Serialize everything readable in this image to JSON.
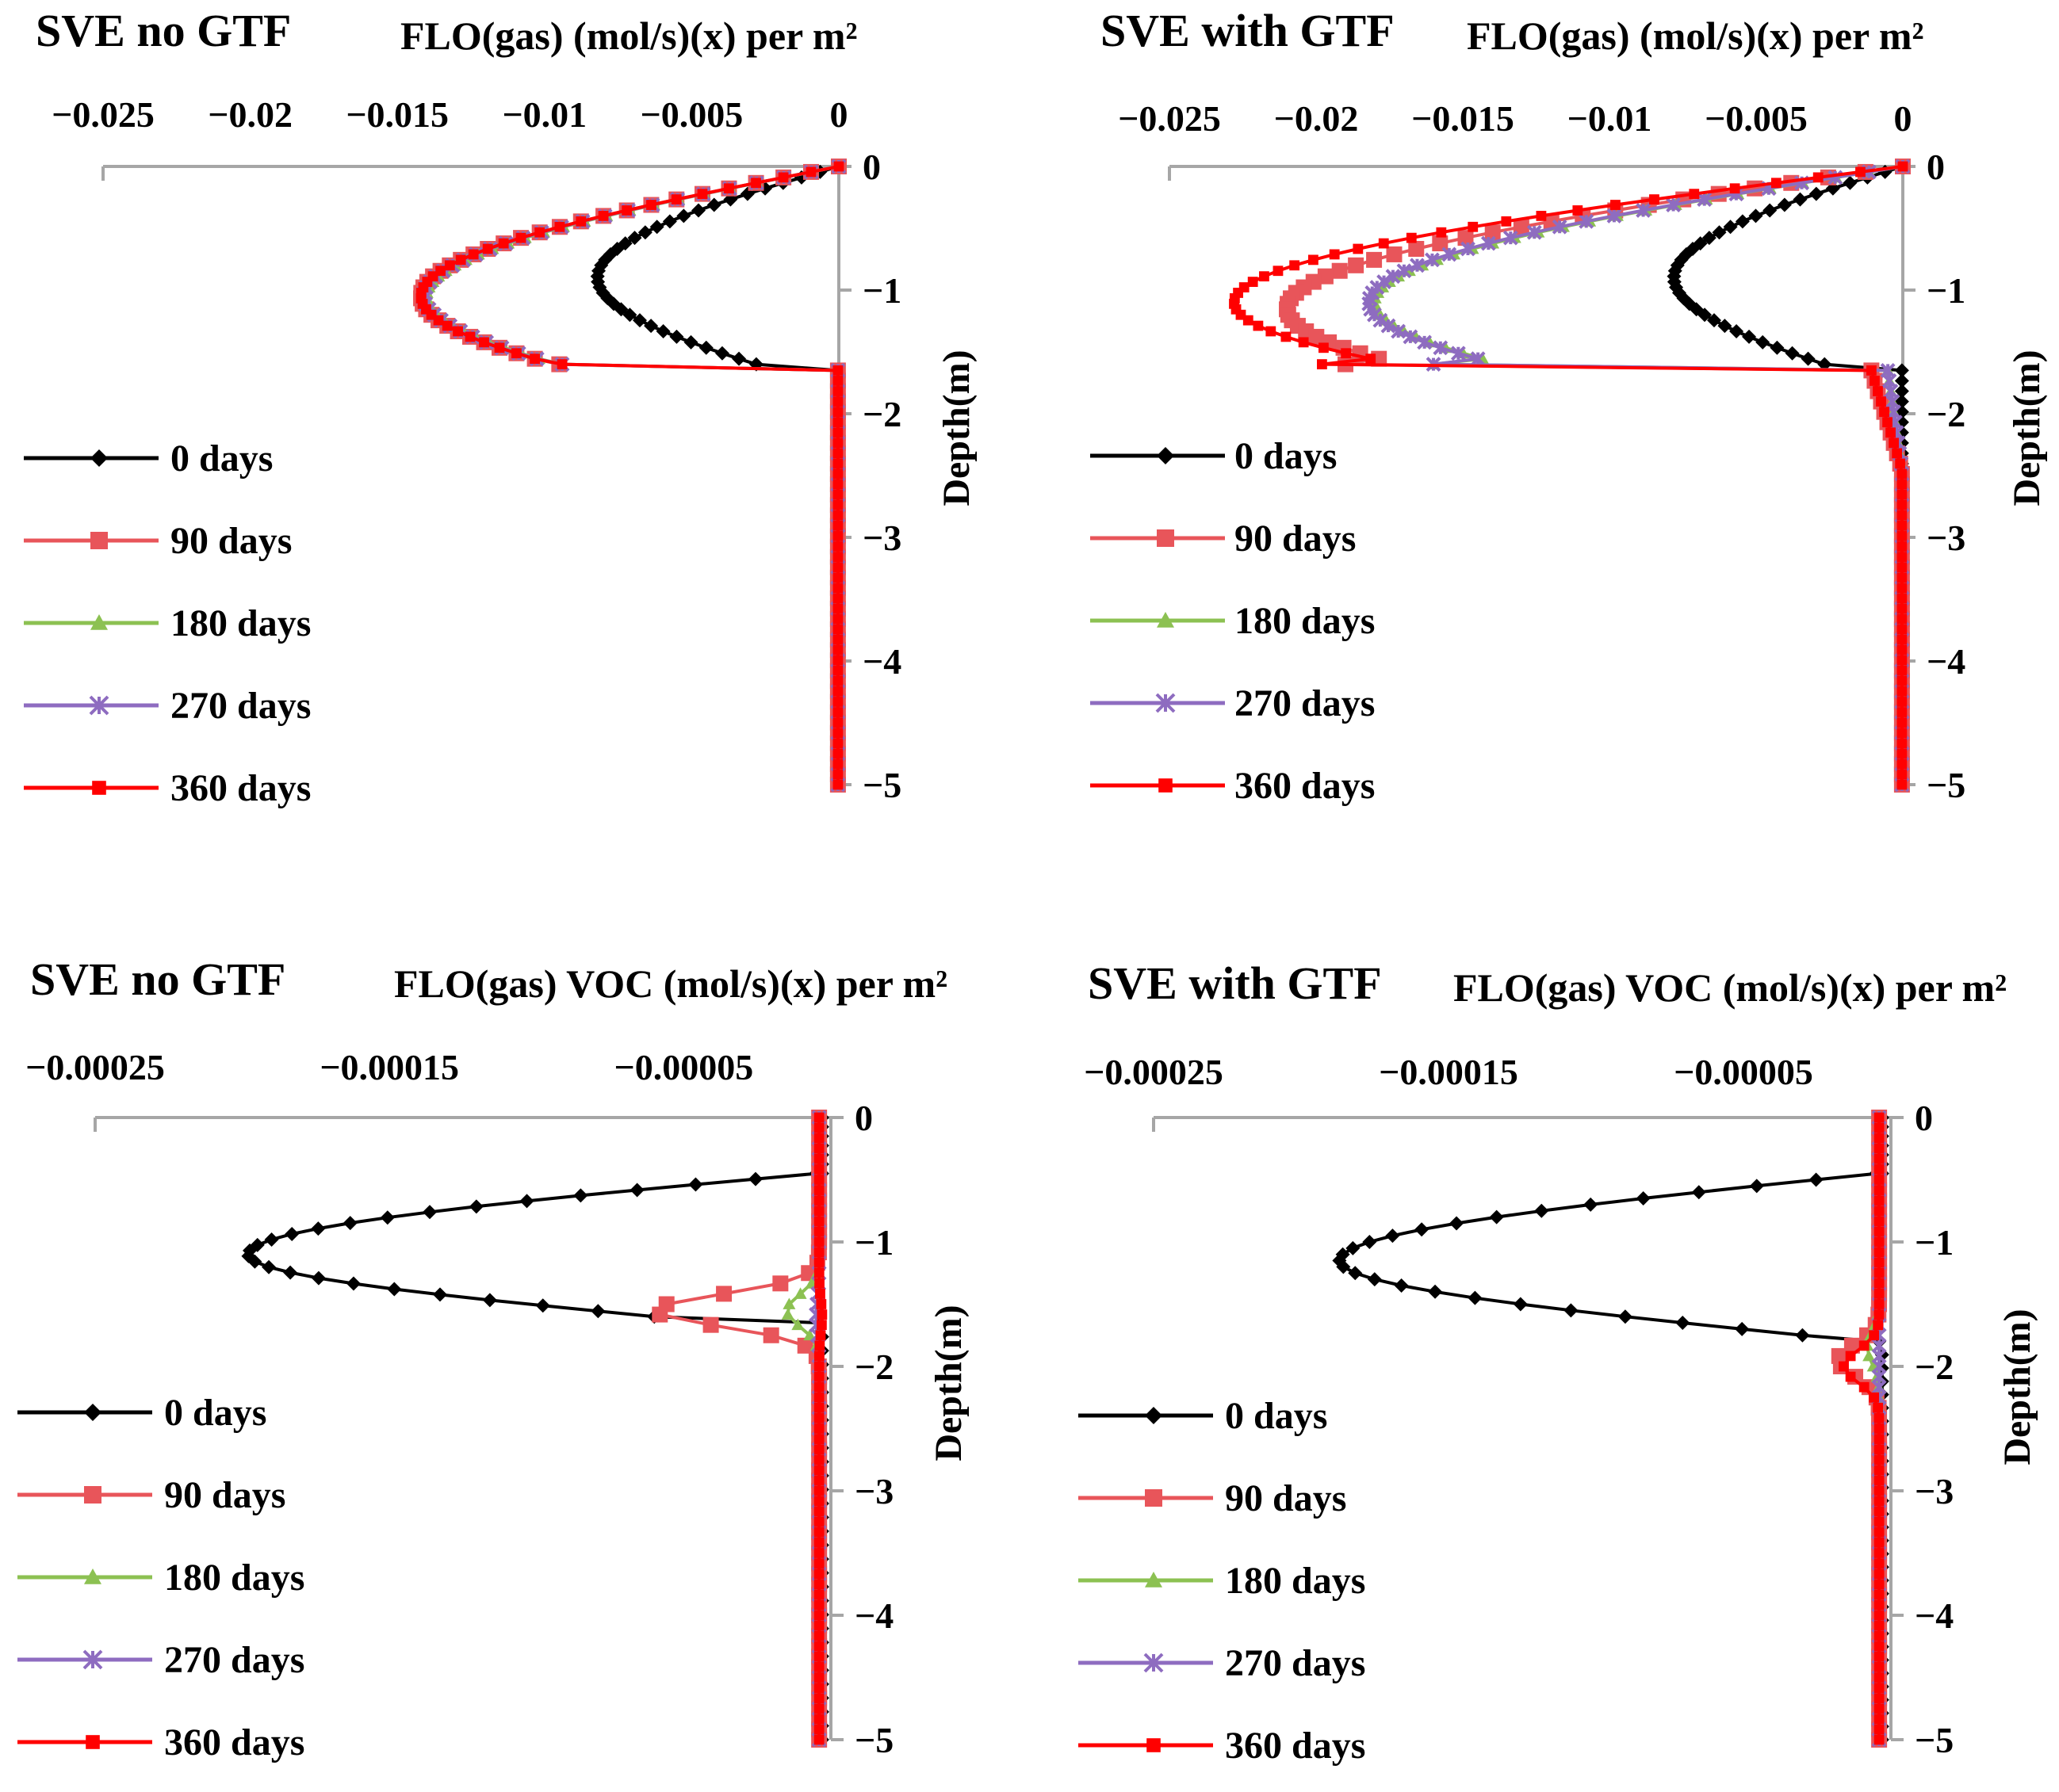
{
  "series_styles": [
    {
      "name": "0 days",
      "color": "#000000",
      "marker": "diamond"
    },
    {
      "name": "90 days",
      "color": "#e8555a",
      "marker": "square"
    },
    {
      "name": "180 days",
      "color": "#8cc152",
      "marker": "triangle"
    },
    {
      "name": "270 days",
      "color": "#8e6cc0",
      "marker": "star"
    },
    {
      "name": "360 days",
      "color": "#ff0000",
      "marker": "square-small"
    }
  ],
  "chart_data": [
    {
      "type": "line",
      "title": "SVE no GTF",
      "xlabel": "FLO(gas) (mol/s)(x) per m²",
      "ylabel": "Depth(m)",
      "xlim": [
        -0.025,
        0
      ],
      "ylim": [
        -5,
        0
      ],
      "xticks": [
        -0.025,
        -0.02,
        -0.015,
        -0.01,
        -0.005,
        0
      ],
      "xtick_labels": [
        "−0.025",
        "−0.02",
        "−0.015",
        "−0.01",
        "−0.005",
        "0"
      ],
      "yticks": [
        0,
        -1,
        -2,
        -3,
        -4,
        -5
      ],
      "ytick_labels": [
        "0",
        "−1",
        "−2",
        "−3",
        "−4",
        "−5"
      ],
      "legend": "left",
      "series": [
        {
          "name": "0 days",
          "peak": -0.0082,
          "peak_depth": -0.9,
          "cutoff_depth": -1.6
        },
        {
          "name": "90 days",
          "peak": -0.0142,
          "peak_depth": -1.05,
          "cutoff_depth": -1.6,
          "cutoff_value": -0.0095
        },
        {
          "name": "180 days",
          "peak": -0.014,
          "peak_depth": -1.05,
          "cutoff_depth": -1.6,
          "cutoff_value": -0.0094
        },
        {
          "name": "270 days",
          "peak": -0.0141,
          "peak_depth": -1.05,
          "cutoff_depth": -1.6,
          "cutoff_value": -0.0094
        },
        {
          "name": "360 days",
          "peak": -0.0142,
          "peak_depth": -1.05,
          "cutoff_depth": -1.6,
          "cutoff_value": -0.0094
        }
      ]
    },
    {
      "type": "line",
      "title": "SVE with GTF",
      "xlabel": "FLO(gas) (mol/s)(x) per m²",
      "ylabel": "Depth(m)",
      "xlim": [
        -0.025,
        0
      ],
      "ylim": [
        -5,
        0
      ],
      "xticks": [
        -0.025,
        -0.02,
        -0.015,
        -0.01,
        -0.005,
        0
      ],
      "xtick_labels": [
        "−0.025",
        "−0.02",
        "−0.015",
        "−0.01",
        "−0.005",
        "0"
      ],
      "yticks": [
        0,
        -1,
        -2,
        -3,
        -4,
        -5
      ],
      "ytick_labels": [
        "0",
        "−1",
        "−2",
        "−3",
        "−4",
        "−5"
      ],
      "legend": "left",
      "series": [
        {
          "name": "0 days",
          "peak": -0.0078,
          "peak_depth": -0.9,
          "cutoff_depth": -1.6
        },
        {
          "name": "90 days",
          "peak": -0.021,
          "peak_depth": -1.15,
          "cutoff_depth": -1.6,
          "cutoff_value": -0.019
        },
        {
          "name": "180 days",
          "peak": -0.018,
          "peak_depth": -1.1,
          "cutoff_depth": -1.6,
          "cutoff_value": -0.016
        },
        {
          "name": "270 days",
          "peak": -0.0182,
          "peak_depth": -1.1,
          "cutoff_depth": -1.6,
          "cutoff_value": -0.016
        },
        {
          "name": "360 days",
          "peak": -0.0228,
          "peak_depth": -1.1,
          "cutoff_depth": -1.6,
          "cutoff_value": -0.0198
        }
      ]
    },
    {
      "type": "line",
      "title": "SVE no GTF",
      "xlabel": "FLO(gas) VOC (mol/s)(x) per m²",
      "ylabel": "Depth(m)",
      "xlim": [
        -0.00025,
        0
      ],
      "ylim": [
        -5,
        0
      ],
      "xticks": [
        -0.00025,
        -0.00015,
        -5e-05
      ],
      "xtick_labels": [
        "−0.00025",
        "−0.00015",
        "−0.00005"
      ],
      "yticks": [
        0,
        -1,
        -2,
        -3,
        -4,
        -5
      ],
      "ytick_labels": [
        "0",
        "−1",
        "−2",
        "−3",
        "−4",
        "−5"
      ],
      "legend": "left",
      "series": [
        {
          "name": "0 days",
          "peak": -0.000198,
          "peak_depth": -1.1,
          "start_depth": -0.45,
          "start_value": -5e-06,
          "cutoff_depth": -1.6,
          "cutoff_value": -6e-05
        },
        {
          "name": "90 days",
          "peak": -6e-05,
          "peak_depth": -1.55
        },
        {
          "name": "180 days",
          "peak": -1.5e-05,
          "peak_depth": -1.55
        },
        {
          "name": "270 days",
          "peak": -5e-06,
          "peak_depth": -1.6
        },
        {
          "name": "360 days",
          "peak": -3e-06,
          "peak_depth": -1.6
        }
      ]
    },
    {
      "type": "line",
      "title": "SVE with GTF",
      "xlabel": "FLO(gas) VOC (mol/s)(x) per m²",
      "ylabel": "Depth(m)",
      "xlim": [
        -0.00025,
        0
      ],
      "ylim": [
        -5,
        0
      ],
      "xticks": [
        -0.00025,
        -0.00015,
        -5e-05
      ],
      "xtick_labels": [
        "−0.00025",
        "−0.00015",
        "−0.00005"
      ],
      "yticks": [
        0,
        -1,
        -2,
        -3,
        -4,
        -5
      ],
      "ytick_labels": [
        "0",
        "−1",
        "−2",
        "−3",
        "−4",
        "−5"
      ],
      "legend": "left",
      "series": [
        {
          "name": "0 days",
          "peak": -0.000187,
          "peak_depth": -1.15,
          "start_depth": -0.45,
          "start_value": -5e-06,
          "cutoff_depth": -1.75,
          "cutoff_value": -3e-05
        },
        {
          "name": "90 days",
          "peak": -1.8e-05,
          "peak_depth": -1.95
        },
        {
          "name": "180 days",
          "peak": -8e-06,
          "peak_depth": -1.85
        },
        {
          "name": "270 days",
          "peak": -4e-06,
          "peak_depth": -2.0
        },
        {
          "name": "360 days",
          "peak": -1.6e-05,
          "peak_depth": -2.0
        }
      ]
    }
  ]
}
